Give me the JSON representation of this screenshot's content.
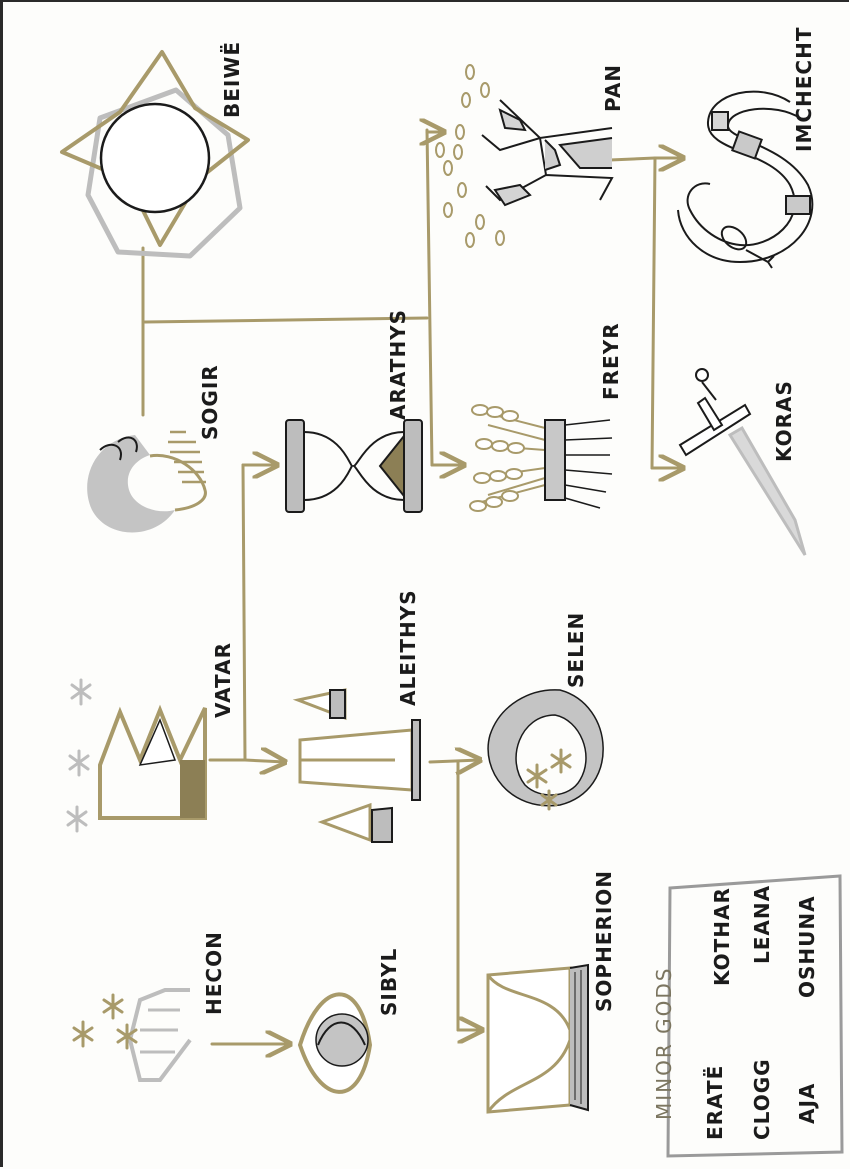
{
  "gods": {
    "beiwe": "BEIWË",
    "pan": "PAN",
    "imchecht": "IMCHECHT",
    "sogir": "SOGIR",
    "arathys": "ARATHYS",
    "freyr": "FREYR",
    "koras": "KORAS",
    "vatar": "VATAR",
    "aleithys": "ALEITHYS",
    "selen": "SELEN",
    "hecon": "HECON",
    "sibyl": "SIBYL",
    "sopherion": "SOPHERION"
  },
  "minor_gods": {
    "title": "MINOR GODS",
    "names": [
      "KOTHAR",
      "LEANA",
      "OSHUNA",
      "ERATË",
      "CLOGG",
      "AJA"
    ]
  },
  "colors": {
    "gold": "#a89a6a",
    "grey": "#bdbdbd",
    "ink": "#1b1b1b"
  }
}
